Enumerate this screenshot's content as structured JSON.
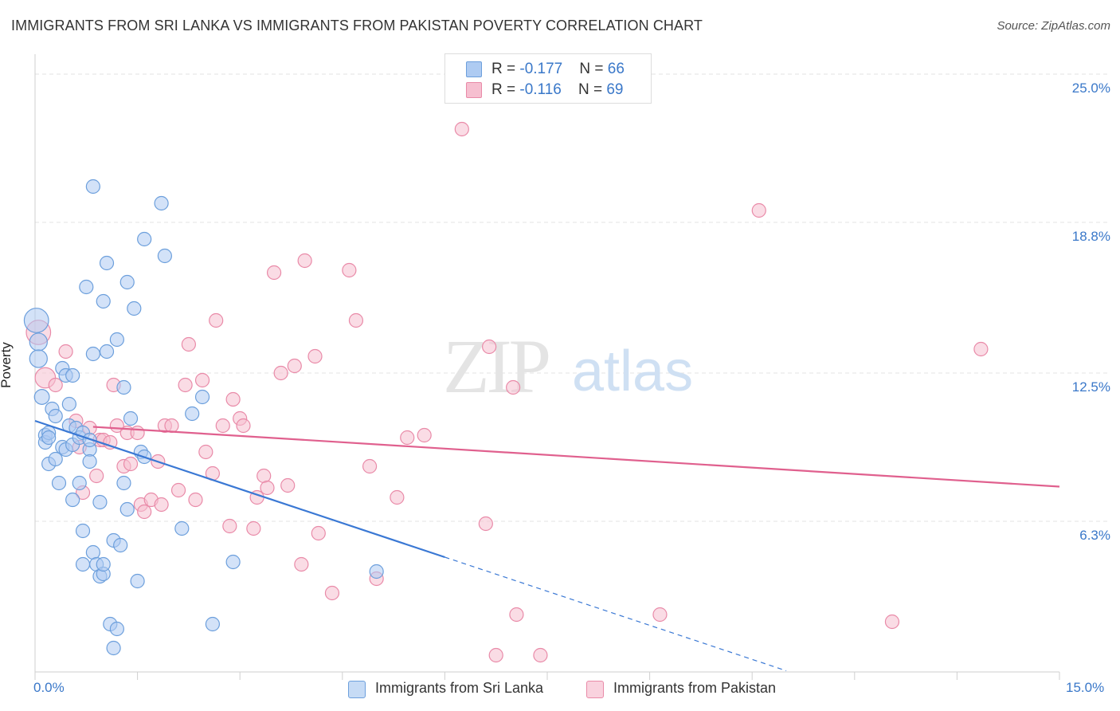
{
  "title": "IMMIGRANTS FROM SRI LANKA VS IMMIGRANTS FROM PAKISTAN POVERTY CORRELATION CHART",
  "source": "Source: ZipAtlas.com",
  "watermark": {
    "zip": "ZIP",
    "atlas": "atlas"
  },
  "legend": {
    "rows": [
      {
        "r_label": "R = ",
        "r_value": "-0.177",
        "n_label": "N = ",
        "n_value": "66"
      },
      {
        "r_label": "R = ",
        "r_value": "-0.116",
        "n_label": "N = ",
        "n_value": "69"
      }
    ]
  },
  "colors": {
    "sri_lanka_fill": "#aecbf2",
    "sri_lanka_stroke": "#6c9fdc",
    "sri_lanka_line": "#3a78d4",
    "pakistan_fill": "#f6bfd0",
    "pakistan_stroke": "#e98aa8",
    "pakistan_line": "#e0608e",
    "tick_text": "#3a78c9",
    "grid": "#e3e3e3"
  },
  "chart_data": {
    "type": "scatter",
    "title": "IMMIGRANTS FROM SRI LANKA VS IMMIGRANTS FROM PAKISTAN POVERTY CORRELATION CHART",
    "xlabel": "",
    "ylabel": "Poverty",
    "xlim": [
      0,
      15
    ],
    "ylim": [
      0,
      25.5
    ],
    "x_tick_labels": [
      "0.0%",
      "15.0%"
    ],
    "y_ticks": [
      6.3,
      12.5,
      18.8,
      25.0
    ],
    "y_tick_labels": [
      "6.3%",
      "12.5%",
      "18.8%",
      "25.0%"
    ],
    "grid": true,
    "legend_placement": "bottom",
    "series": [
      {
        "name": "Immigrants from Sri Lanka",
        "r": -0.177,
        "n": 66,
        "trend": {
          "x0": 0,
          "y0": 10.5,
          "x1": 6.0,
          "y1": 4.8,
          "dash_to_x": 11.0
        },
        "points": [
          [
            0.02,
            14.7,
            1.8
          ],
          [
            0.05,
            13.8,
            1.3
          ],
          [
            0.05,
            13.1,
            1.3
          ],
          [
            0.1,
            11.5,
            1.1
          ],
          [
            0.15,
            9.9,
            1.0
          ],
          [
            0.15,
            9.6,
            1.0
          ],
          [
            0.2,
            10.0,
            1.0
          ],
          [
            0.2,
            9.8,
            1.0
          ],
          [
            0.2,
            8.7,
            1.0
          ],
          [
            0.25,
            11.0,
            1.0
          ],
          [
            0.3,
            8.9,
            1.0
          ],
          [
            0.3,
            10.7,
            1.0
          ],
          [
            0.35,
            7.9,
            1.0
          ],
          [
            0.4,
            9.4,
            1.0
          ],
          [
            0.4,
            12.7,
            1.0
          ],
          [
            0.45,
            12.4,
            1.0
          ],
          [
            0.45,
            9.3,
            1.0
          ],
          [
            0.5,
            11.2,
            1.0
          ],
          [
            0.5,
            10.3,
            1.0
          ],
          [
            0.55,
            9.5,
            1.0
          ],
          [
            0.55,
            12.4,
            1.0
          ],
          [
            0.55,
            7.2,
            1.0
          ],
          [
            0.6,
            10.2,
            1.0
          ],
          [
            0.65,
            7.9,
            1.0
          ],
          [
            0.65,
            9.8,
            1.0
          ],
          [
            0.7,
            10.0,
            1.0
          ],
          [
            0.7,
            5.9,
            1.0
          ],
          [
            0.7,
            4.5,
            1.0
          ],
          [
            0.75,
            16.1,
            1.0
          ],
          [
            0.8,
            9.3,
            1.0
          ],
          [
            0.8,
            9.7,
            1.0
          ],
          [
            0.8,
            8.8,
            1.0
          ],
          [
            0.85,
            13.3,
            1.0
          ],
          [
            0.85,
            5.0,
            1.0
          ],
          [
            0.9,
            4.5,
            1.0
          ],
          [
            0.95,
            7.1,
            1.0
          ],
          [
            0.95,
            4.0,
            1.0
          ],
          [
            1.0,
            4.1,
            1.0
          ],
          [
            1.0,
            4.5,
            1.0
          ],
          [
            1.0,
            15.5,
            1.0
          ],
          [
            1.05,
            13.4,
            1.0
          ],
          [
            1.05,
            17.1,
            1.0
          ],
          [
            1.1,
            2.0,
            1.0
          ],
          [
            1.15,
            1.0,
            1.0
          ],
          [
            1.15,
            5.5,
            1.0
          ],
          [
            1.2,
            1.8,
            1.0
          ],
          [
            1.2,
            13.9,
            1.0
          ],
          [
            1.25,
            5.3,
            1.0
          ],
          [
            1.3,
            7.9,
            1.0
          ],
          [
            1.3,
            11.9,
            1.0
          ],
          [
            1.35,
            6.8,
            1.0
          ],
          [
            1.35,
            16.3,
            1.0
          ],
          [
            1.4,
            10.6,
            1.0
          ],
          [
            1.45,
            15.2,
            1.0
          ],
          [
            1.5,
            3.8,
            1.0
          ],
          [
            1.55,
            9.2,
            1.0
          ],
          [
            1.6,
            9.0,
            1.0
          ],
          [
            1.6,
            18.1,
            1.0
          ],
          [
            1.85,
            19.6,
            1.0
          ],
          [
            1.9,
            17.4,
            1.0
          ],
          [
            2.15,
            6.0,
            1.0
          ],
          [
            2.3,
            10.8,
            1.0
          ],
          [
            2.45,
            11.5,
            1.0
          ],
          [
            2.6,
            2.0,
            1.0
          ],
          [
            2.9,
            4.6,
            1.0
          ],
          [
            5.0,
            4.2,
            1.0
          ],
          [
            0.85,
            20.3,
            1.0
          ]
        ]
      },
      {
        "name": "Immigrants from Pakistan",
        "r": -0.116,
        "n": 69,
        "trend": {
          "x0": 0.85,
          "y0": 10.25,
          "x1": 15.0,
          "y1": 7.75
        },
        "points": [
          [
            0.05,
            14.2,
            1.8
          ],
          [
            0.15,
            12.3,
            1.5
          ],
          [
            0.3,
            12.0,
            1.0
          ],
          [
            0.45,
            13.4,
            1.0
          ],
          [
            0.6,
            10.5,
            1.0
          ],
          [
            0.65,
            9.4,
            1.0
          ],
          [
            0.7,
            7.5,
            1.0
          ],
          [
            0.8,
            10.2,
            1.0
          ],
          [
            0.9,
            8.2,
            1.0
          ],
          [
            0.95,
            9.7,
            1.0
          ],
          [
            1.0,
            9.7,
            1.0
          ],
          [
            1.1,
            9.6,
            1.0
          ],
          [
            1.15,
            12.0,
            1.0
          ],
          [
            1.2,
            10.3,
            1.0
          ],
          [
            1.3,
            8.6,
            1.0
          ],
          [
            1.35,
            10.0,
            1.0
          ],
          [
            1.4,
            8.7,
            1.0
          ],
          [
            1.5,
            10.0,
            1.0
          ],
          [
            1.55,
            7.0,
            1.0
          ],
          [
            1.6,
            6.7,
            1.0
          ],
          [
            1.7,
            7.2,
            1.0
          ],
          [
            1.8,
            8.8,
            1.0
          ],
          [
            1.85,
            7.0,
            1.0
          ],
          [
            1.9,
            10.3,
            1.0
          ],
          [
            2.0,
            10.3,
            1.0
          ],
          [
            2.1,
            7.6,
            1.0
          ],
          [
            2.2,
            12.0,
            1.0
          ],
          [
            2.25,
            13.7,
            1.0
          ],
          [
            2.35,
            7.2,
            1.0
          ],
          [
            2.45,
            12.2,
            1.0
          ],
          [
            2.5,
            9.2,
            1.0
          ],
          [
            2.6,
            8.3,
            1.0
          ],
          [
            2.65,
            14.7,
            1.0
          ],
          [
            2.75,
            10.3,
            1.0
          ],
          [
            2.85,
            6.1,
            1.0
          ],
          [
            2.9,
            11.4,
            1.0
          ],
          [
            3.0,
            10.6,
            1.0
          ],
          [
            3.05,
            10.3,
            1.0
          ],
          [
            3.2,
            6.0,
            1.0
          ],
          [
            3.25,
            7.3,
            1.0
          ],
          [
            3.35,
            8.2,
            1.0
          ],
          [
            3.4,
            7.7,
            1.0
          ],
          [
            3.5,
            16.7,
            1.0
          ],
          [
            3.6,
            12.5,
            1.0
          ],
          [
            3.7,
            7.8,
            1.0
          ],
          [
            3.8,
            12.8,
            1.0
          ],
          [
            3.9,
            4.5,
            1.0
          ],
          [
            3.95,
            17.2,
            1.0
          ],
          [
            4.1,
            13.2,
            1.0
          ],
          [
            4.15,
            5.8,
            1.0
          ],
          [
            4.35,
            3.3,
            1.0
          ],
          [
            4.6,
            16.8,
            1.0
          ],
          [
            4.7,
            14.7,
            1.0
          ],
          [
            4.9,
            8.6,
            1.0
          ],
          [
            5.0,
            3.9,
            1.0
          ],
          [
            5.3,
            7.3,
            1.0
          ],
          [
            5.45,
            9.8,
            1.0
          ],
          [
            5.7,
            9.9,
            1.0
          ],
          [
            6.25,
            22.7,
            1.0
          ],
          [
            6.6,
            6.2,
            1.0
          ],
          [
            6.65,
            13.6,
            1.0
          ],
          [
            6.75,
            0.7,
            1.0
          ],
          [
            7.0,
            11.9,
            1.0
          ],
          [
            7.05,
            2.4,
            1.0
          ],
          [
            7.4,
            0.7,
            1.0
          ],
          [
            9.15,
            2.4,
            1.0
          ],
          [
            10.6,
            19.3,
            1.0
          ],
          [
            12.55,
            2.1,
            1.0
          ],
          [
            13.85,
            13.5,
            1.0
          ]
        ]
      }
    ]
  },
  "bottom_legend": [
    {
      "label": "Immigrants from Sri Lanka"
    },
    {
      "label": "Immigrants from Pakistan"
    }
  ]
}
